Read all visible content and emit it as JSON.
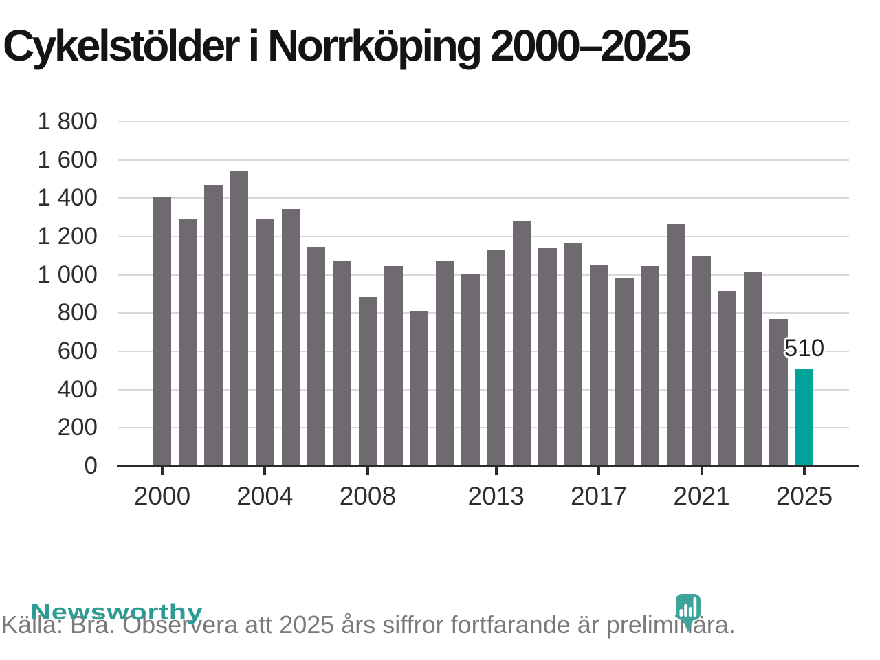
{
  "page": {
    "title": "Cykelstölder i Norrköping 2000–2025"
  },
  "chart_data": {
    "type": "bar",
    "title": "Cykelstölder i Norrköping 2000–2025",
    "x": [
      2000,
      2001,
      2002,
      2003,
      2004,
      2005,
      2006,
      2007,
      2008,
      2009,
      2010,
      2011,
      2012,
      2013,
      2014,
      2015,
      2016,
      2017,
      2018,
      2019,
      2020,
      2021,
      2022,
      2023,
      2024,
      2025
    ],
    "values": [
      1405,
      1290,
      1470,
      1540,
      1290,
      1345,
      1145,
      1070,
      885,
      1045,
      810,
      1075,
      1005,
      1130,
      1280,
      1140,
      1165,
      1050,
      980,
      1045,
      1265,
      1095,
      915,
      1015,
      770,
      510
    ],
    "x_tick_labels": [
      "2000",
      "2004",
      "2008",
      "2013",
      "2017",
      "2021",
      "2025"
    ],
    "y_ticks": [
      0,
      200,
      400,
      600,
      800,
      1000,
      1200,
      1400,
      1600,
      1800
    ],
    "y_tick_labels": [
      "0",
      "200",
      "400",
      "600",
      "800",
      "1 000",
      "1 200",
      "1 400",
      "1 600",
      "1 800"
    ],
    "ylim": [
      0,
      1800
    ],
    "grid": true,
    "legend": "none",
    "bar_color": "#6e6a70",
    "highlight": {
      "year": 2025,
      "value": 510,
      "label": "510",
      "color": "#00a29a"
    }
  },
  "footer": {
    "source_note": "Källa: Brå. Observera att 2025 års siffror fortfarande är preliminära."
  },
  "logo": {
    "brand": "Newsworthy",
    "icon": "bar-chart-pin-icon",
    "pin_color": "#3da49b",
    "text_color": "#2f9c94"
  }
}
